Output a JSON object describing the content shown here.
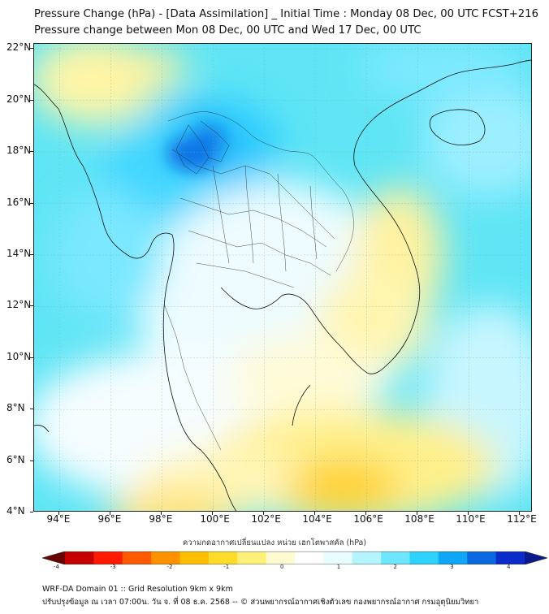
{
  "title_line1": "Pressure Change (hPa) - [Data Assimilation] _ Initial Time : Monday 08 Dec, 00 UTC FCST+216",
  "title_line2": "Pressure change between Mon 08 Dec, 00 UTC and Wed 17 Dec, 00 UTC",
  "lat_labels": [
    "22°N",
    "20°N",
    "18°N",
    "16°N",
    "14°N",
    "12°N",
    "10°N",
    "8°N",
    "6°N",
    "4°N"
  ],
  "lon_labels": [
    "94°E",
    "96°E",
    "98°E",
    "100°E",
    "102°E",
    "104°E",
    "106°E",
    "108°E",
    "110°E",
    "112°E"
  ],
  "colorbar": {
    "title": "ความกดอากาศเปลี่ยนแปลง หน่วย เฮกโตพาสคัล (hPa)",
    "tick_labels": [
      "-4",
      "-3",
      "-2",
      "-1",
      "0",
      "1",
      "2",
      "3",
      "4"
    ],
    "colors": [
      "#6b0000",
      "#c40000",
      "#ff1a00",
      "#ff5a00",
      "#ff9000",
      "#ffbe00",
      "#ffdc2a",
      "#fff07a",
      "#fffbd0",
      "#ffffff",
      "#e8fdff",
      "#b4f4ff",
      "#6ee6ff",
      "#2dd2ff",
      "#10a6f8",
      "#0a68e0",
      "#0a2cc8",
      "#091a90"
    ]
  },
  "map": {
    "extent": {
      "lon_min": 93,
      "lon_max": 112.5,
      "lat_min": 4,
      "lat_max": 22.2
    },
    "background_color": "#5fe5f5"
  },
  "footer_line1": "WRF-DA Domain 01 :: Grid Resolution 9km x 9km",
  "footer_line2": "ปรับปรุงข้อมูล ณ เวลา 07:00น. วัน จ. ที่ 08 ธ.ค. 2568 -- © ส่วนพยากรณ์อากาศเชิงตัวเลข กองพยากรณ์อากาศ กรมอุตุนิยมวิทยา"
}
